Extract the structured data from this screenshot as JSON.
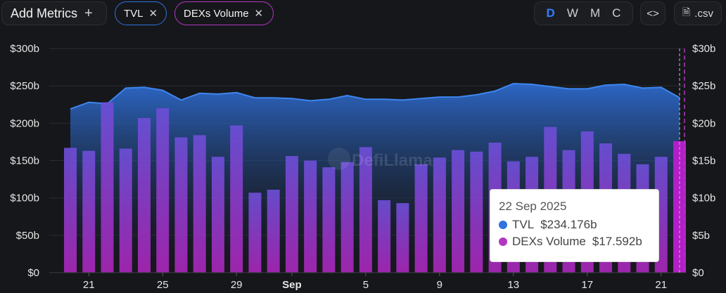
{
  "toolbar": {
    "add_metrics_label": "Add Metrics",
    "metric_pills": [
      {
        "label": "TVL",
        "color": "#2f72e0"
      },
      {
        "label": "DEXs Volume",
        "color": "#b236c2"
      }
    ],
    "granularity": [
      "D",
      "W",
      "M",
      "C"
    ],
    "granularity_active": "D",
    "embed_label": "<>",
    "csv_label": ".csv"
  },
  "watermark": "DefiLlama",
  "tooltip": {
    "date": "22 Sep 2025",
    "rows": [
      {
        "name": "TVL",
        "value": "$234.176b",
        "color": "#2f72e0"
      },
      {
        "name": "DEXs Volume",
        "value": "$17.592b",
        "color": "#b236c2"
      }
    ]
  },
  "chart_data": {
    "type": "bar",
    "x_dates": [
      "2025-08-20",
      "2025-08-21",
      "2025-08-22",
      "2025-08-23",
      "2025-08-24",
      "2025-08-25",
      "2025-08-26",
      "2025-08-27",
      "2025-08-28",
      "2025-08-29",
      "2025-08-30",
      "2025-08-31",
      "2025-09-01",
      "2025-09-02",
      "2025-09-03",
      "2025-09-04",
      "2025-09-05",
      "2025-09-06",
      "2025-09-07",
      "2025-09-08",
      "2025-09-09",
      "2025-09-10",
      "2025-09-11",
      "2025-09-12",
      "2025-09-13",
      "2025-09-14",
      "2025-09-15",
      "2025-09-16",
      "2025-09-17",
      "2025-09-18",
      "2025-09-19",
      "2025-09-20",
      "2025-09-21",
      "2025-09-22"
    ],
    "x_tick_labels": [
      "21",
      "25",
      "29",
      "Sep",
      "5",
      "9",
      "13",
      "17",
      "21"
    ],
    "left_axis": {
      "ticks": [
        "$0",
        "$50b",
        "$100b",
        "$150b",
        "$200b",
        "$250b",
        "$300b"
      ],
      "range": [
        0,
        300
      ]
    },
    "right_axis": {
      "ticks": [
        "$0",
        "$5b",
        "$10b",
        "$15b",
        "$20b",
        "$25b",
        "$30b"
      ],
      "range": [
        0,
        30
      ]
    },
    "series": [
      {
        "name": "TVL",
        "type": "area",
        "axis": "left",
        "color": "#2f72e0",
        "values": [
          219,
          228,
          226,
          247,
          248,
          244,
          231,
          240,
          239,
          241,
          234,
          234,
          233,
          230,
          232,
          237,
          232,
          232,
          231,
          233,
          235,
          235,
          238,
          243,
          253,
          252,
          249,
          246,
          246,
          251,
          252,
          247,
          248,
          234.176
        ]
      },
      {
        "name": "DEXs Volume",
        "type": "bar",
        "axis": "right",
        "color": "#b236c2",
        "values": [
          16.7,
          16.3,
          22.8,
          16.6,
          20.7,
          22.0,
          18.1,
          18.4,
          15.5,
          19.7,
          10.7,
          11.1,
          15.6,
          15.0,
          14.1,
          14.8,
          16.8,
          9.7,
          9.3,
          14.5,
          15.4,
          16.4,
          16.2,
          17.4,
          14.9,
          15.5,
          19.5,
          16.4,
          18.9,
          17.3,
          15.9,
          14.5,
          15.5,
          17.592
        ]
      }
    ],
    "grid": "horizontal"
  }
}
